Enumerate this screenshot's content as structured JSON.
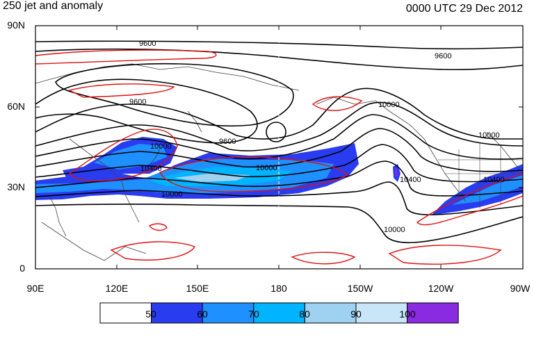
{
  "figure": {
    "title_left": "250 jet and anomaly",
    "title_right": "0000 UTC 29 Dec 2012"
  },
  "axes": {
    "lat_labels": [
      "90N",
      "60N",
      "30N",
      "0"
    ],
    "lon_labels": [
      "90E",
      "120E",
      "150E",
      "180",
      "150W",
      "120W",
      "90W"
    ]
  },
  "colorbar": {
    "colors": [
      "#ffffff",
      "#2a3cf0",
      "#1e90ff",
      "#00b4ff",
      "#9ed2f0",
      "#c8e6f8",
      "#8a2be2"
    ],
    "labels": [
      "50",
      "60",
      "70",
      "80",
      "90",
      "100"
    ]
  },
  "contour_labels": {
    "c1": "9600",
    "c2": "9600",
    "c3": "9600",
    "c4": "9600",
    "c5": "10000",
    "c6": "10000",
    "c7": "10000",
    "c8": "10000",
    "c9": "10000",
    "c10": "10400",
    "c11": "10400",
    "c12": "10400",
    "c13": "10000"
  },
  "style_colors": {
    "contour": "#000000",
    "anomaly": "#e01010",
    "coast": "#404040",
    "jet_dark": "#2a3cf0",
    "jet_mid": "#1e90ff",
    "jet_light": "#00b4ff",
    "jet_pale": "#9ed2f0"
  }
}
